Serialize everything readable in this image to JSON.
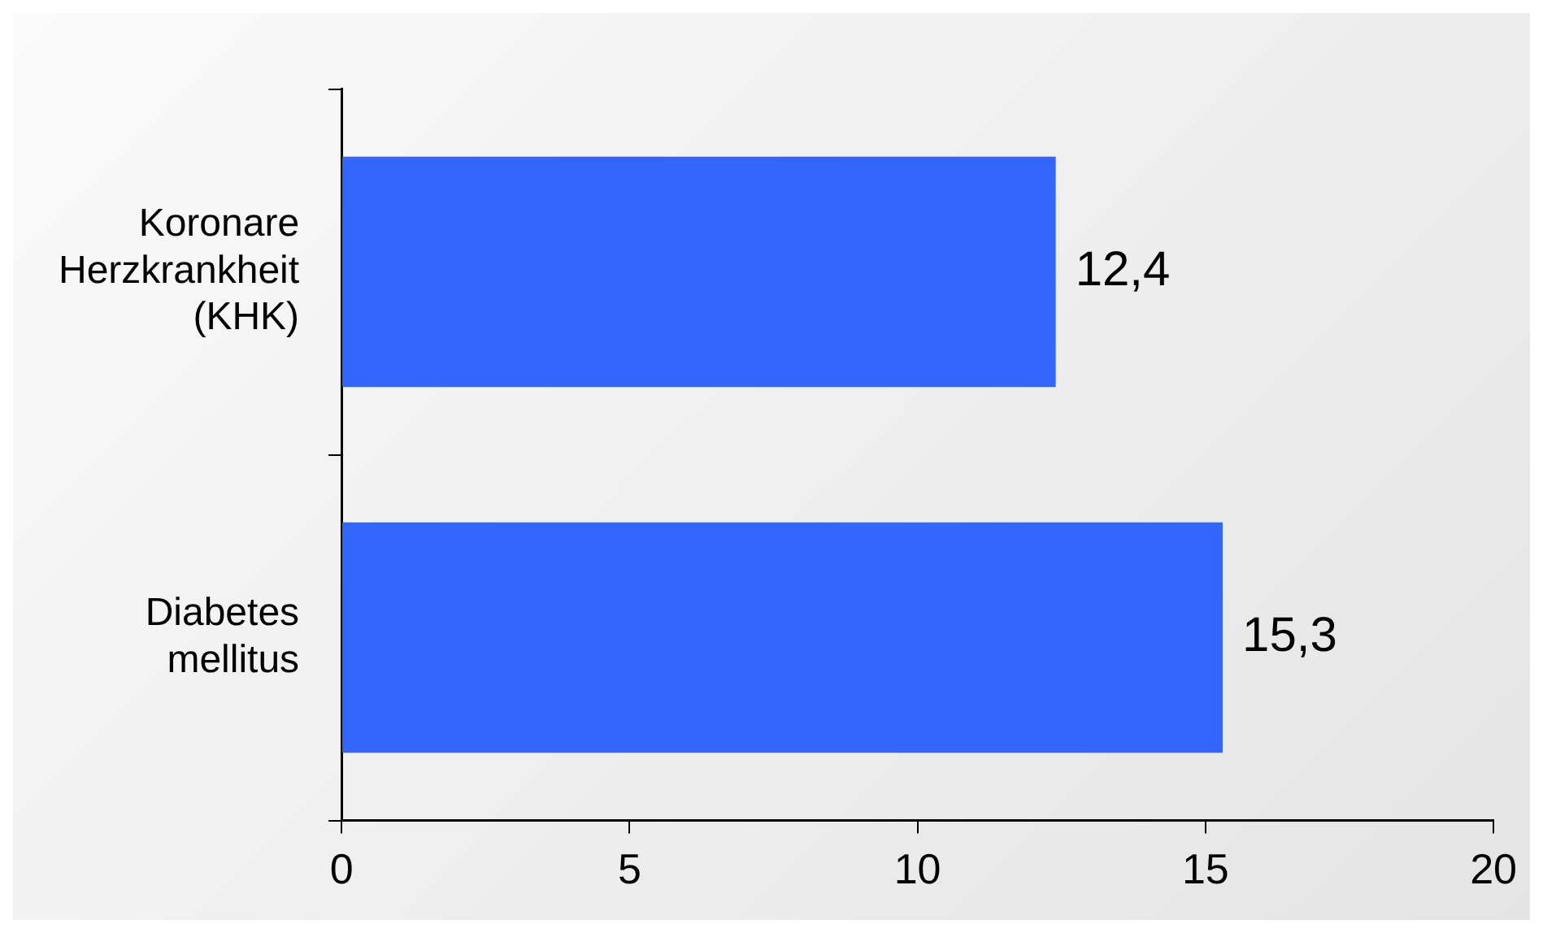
{
  "chart_data": {
    "type": "bar",
    "orientation": "horizontal",
    "categories": [
      "Koronare Herzkrankheit (KHK)",
      "Diabetes mellitus"
    ],
    "values": [
      12.4,
      15.3
    ],
    "value_labels": [
      "12,4",
      "15,3"
    ],
    "color": "#3366ff",
    "xlim": [
      0,
      20
    ],
    "xticks": [
      0,
      5,
      10,
      15,
      20
    ],
    "grid": false,
    "legend": false
  }
}
